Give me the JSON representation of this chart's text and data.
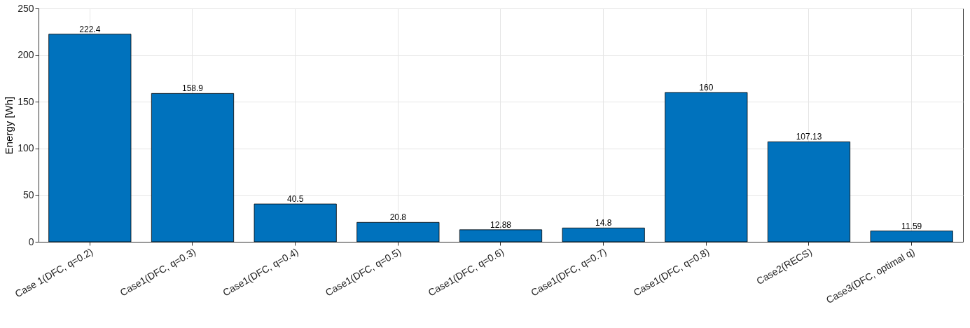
{
  "chart_data": {
    "type": "bar",
    "ylabel": "Energy [Wh]",
    "categories": [
      "Case 1(DFC, q=0.2)",
      "Case1(DFC, q=0.3)",
      "Case1(DFC, q=0.4)",
      "Case1(DFC, q=0.5)",
      "Case1(DFC, q=0.6)",
      "Case1(DFC, q=0.7)",
      "Case1(DFC, q=0.8)",
      "Case2(RECS)",
      "Case3(DFC, optimal q)"
    ],
    "values": [
      222.4,
      158.9,
      40.5,
      20.8,
      12.88,
      14.8,
      160,
      107.13,
      11.59
    ],
    "color": "#0072bd",
    "ylim": [
      0,
      250
    ],
    "yticks": [
      0,
      50,
      100,
      150,
      200,
      250
    ],
    "grid": true,
    "data_labels": true
  }
}
